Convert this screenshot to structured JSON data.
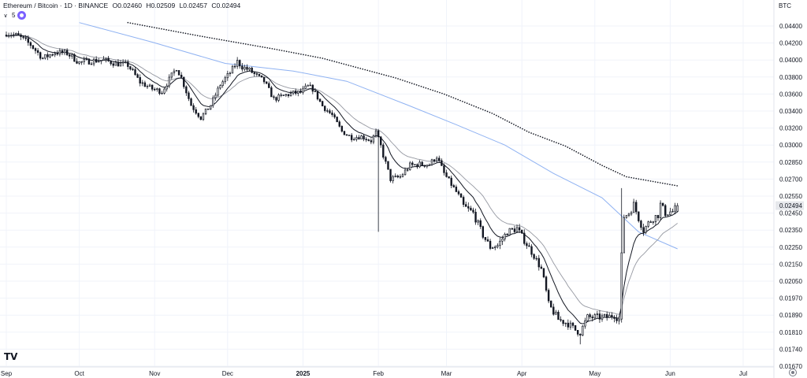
{
  "header": {
    "symbol": "Ethereum / Bitcoin · 1D · BINANCE",
    "open": "O0.02460",
    "high": "H0.02509",
    "low": "L0.02457",
    "close": "C0.02494"
  },
  "indicator": {
    "count": "5"
  },
  "currency": "BTC",
  "logo_text": "TV",
  "colors": {
    "background": "#ffffff",
    "candle": "#131722",
    "ema_fast": "#131722",
    "ema_slow": "#9598a1",
    "ma_blue": "#8fb2f2",
    "ma_dotted": "#131722",
    "grid": "#f0f3fa",
    "price_badge": "#e6e8ec"
  },
  "chart_data": {
    "type": "candlestick",
    "title": "Ethereum / Bitcoin · 1D · BINANCE",
    "ylim": [
      0.0167,
      0.0444
    ],
    "y_ticks": [
      "0.04400",
      "0.04200",
      "0.04000",
      "0.03800",
      "0.03600",
      "0.03400",
      "0.03200",
      "0.03000",
      "0.02850",
      "0.02700",
      "0.02550",
      "0.02450",
      "0.02350",
      "0.02250",
      "0.02150",
      "0.02050",
      "0.01970",
      "0.01890",
      "0.01810",
      "0.01740",
      "0.01670"
    ],
    "x_ticks": [
      {
        "label": "Sep",
        "day": 0,
        "bold": false
      },
      {
        "label": "Oct",
        "day": 30,
        "bold": false
      },
      {
        "label": "Nov",
        "day": 61,
        "bold": false
      },
      {
        "label": "Dec",
        "day": 91,
        "bold": false
      },
      {
        "label": "2025",
        "day": 122,
        "bold": true
      },
      {
        "label": "Feb",
        "day": 153,
        "bold": false
      },
      {
        "label": "Mar",
        "day": 181,
        "bold": false
      },
      {
        "label": "Apr",
        "day": 212,
        "bold": false
      },
      {
        "label": "May",
        "day": 242,
        "bold": false
      },
      {
        "label": "Jun",
        "day": 273,
        "bold": false
      },
      {
        "label": "Jul",
        "day": 303,
        "bold": false
      }
    ],
    "last_price": "0.02494",
    "close_anchors": [
      [
        0,
        0.0432
      ],
      [
        5,
        0.0428
      ],
      [
        10,
        0.0418
      ],
      [
        15,
        0.0402
      ],
      [
        20,
        0.0409
      ],
      [
        25,
        0.0408
      ],
      [
        30,
        0.0397
      ],
      [
        35,
        0.0399
      ],
      [
        40,
        0.04
      ],
      [
        45,
        0.0396
      ],
      [
        50,
        0.0394
      ],
      [
        55,
        0.0374
      ],
      [
        60,
        0.0366
      ],
      [
        64,
        0.0363
      ],
      [
        67,
        0.0377
      ],
      [
        70,
        0.0391
      ],
      [
        72,
        0.0379
      ],
      [
        76,
        0.0347
      ],
      [
        80,
        0.0332
      ],
      [
        84,
        0.0347
      ],
      [
        88,
        0.0371
      ],
      [
        92,
        0.0385
      ],
      [
        95,
        0.0398
      ],
      [
        97,
        0.0392
      ],
      [
        100,
        0.0388
      ],
      [
        103,
        0.0381
      ],
      [
        106,
        0.0375
      ],
      [
        110,
        0.0354
      ],
      [
        114,
        0.0358
      ],
      [
        118,
        0.0361
      ],
      [
        121,
        0.0362
      ],
      [
        124,
        0.0369
      ],
      [
        126,
        0.0366
      ],
      [
        130,
        0.0346
      ],
      [
        134,
        0.0335
      ],
      [
        138,
        0.0316
      ],
      [
        142,
        0.0309
      ],
      [
        146,
        0.031
      ],
      [
        150,
        0.0305
      ],
      [
        152,
        0.0315
      ],
      [
        155,
        0.0291
      ],
      [
        158,
        0.027
      ],
      [
        162,
        0.0272
      ],
      [
        166,
        0.0282
      ],
      [
        170,
        0.0283
      ],
      [
        174,
        0.0283
      ],
      [
        177,
        0.029
      ],
      [
        180,
        0.0275
      ],
      [
        184,
        0.0262
      ],
      [
        188,
        0.0249
      ],
      [
        192,
        0.0245
      ],
      [
        196,
        0.0232
      ],
      [
        199,
        0.0225
      ],
      [
        202,
        0.0226
      ],
      [
        206,
        0.0234
      ],
      [
        210,
        0.0236
      ],
      [
        213,
        0.0229
      ],
      [
        217,
        0.022
      ],
      [
        220,
        0.0212
      ],
      [
        223,
        0.0194
      ],
      [
        227,
        0.0187
      ],
      [
        231,
        0.0185
      ],
      [
        234,
        0.0182
      ],
      [
        236,
        0.0181
      ],
      [
        239,
        0.0188
      ],
      [
        243,
        0.0188
      ],
      [
        247,
        0.0188
      ],
      [
        250,
        0.0189
      ],
      [
        252,
        0.0187
      ],
      [
        253,
        0.022
      ],
      [
        254,
        0.0243
      ],
      [
        256,
        0.0245
      ],
      [
        258,
        0.025
      ],
      [
        260,
        0.0242
      ],
      [
        262,
        0.0235
      ],
      [
        264,
        0.0239
      ],
      [
        266,
        0.0242
      ],
      [
        268,
        0.0244
      ],
      [
        269,
        0.025
      ],
      [
        271,
        0.0245
      ],
      [
        274,
        0.0246
      ],
      [
        276,
        0.0249
      ]
    ],
    "ma_blue": [
      [
        30,
        0.0444
      ],
      [
        60,
        0.0421
      ],
      [
        90,
        0.0396
      ],
      [
        118,
        0.0387
      ],
      [
        140,
        0.0375
      ],
      [
        165,
        0.0347
      ],
      [
        185,
        0.0324
      ],
      [
        205,
        0.03
      ],
      [
        225,
        0.0275
      ],
      [
        245,
        0.0254
      ],
      [
        260,
        0.0234
      ],
      [
        276,
        0.0224
      ]
    ],
    "ma_dotted": [
      [
        50,
        0.0444
      ],
      [
        80,
        0.0428
      ],
      [
        110,
        0.0413
      ],
      [
        130,
        0.0402
      ],
      [
        160,
        0.0379
      ],
      [
        180,
        0.036
      ],
      [
        200,
        0.0337
      ],
      [
        215,
        0.0315
      ],
      [
        230,
        0.0299
      ],
      [
        245,
        0.0282
      ],
      [
        255,
        0.0272
      ],
      [
        276,
        0.0264
      ]
    ]
  }
}
